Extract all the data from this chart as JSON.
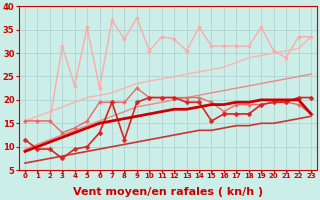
{
  "xlabel": "Vent moyen/en rafales ( kn/h )",
  "bg_color": "#cceee8",
  "grid_color": "#aacccc",
  "x": [
    0,
    1,
    2,
    3,
    4,
    5,
    6,
    7,
    8,
    9,
    10,
    11,
    12,
    13,
    14,
    15,
    16,
    17,
    18,
    19,
    20,
    21,
    22,
    23
  ],
  "ylim": [
    5,
    40
  ],
  "xlim": [
    -0.5,
    23.5
  ],
  "yticks": [
    5,
    10,
    15,
    20,
    25,
    30,
    35,
    40
  ],
  "lines": [
    {
      "y": [
        15.5,
        16.5,
        17.5,
        18.5,
        19.5,
        20.5,
        21.0,
        21.5,
        22.5,
        23.5,
        24.0,
        24.5,
        25.0,
        25.5,
        26.0,
        26.5,
        27.0,
        28.0,
        29.0,
        29.5,
        30.0,
        30.5,
        31.0,
        33.5
      ],
      "color": "#ffb0b0",
      "lw": 1.0,
      "marker": null,
      "ms": 0,
      "zorder": 2
    },
    {
      "y": [
        15.5,
        15.5,
        15.5,
        31.5,
        23.0,
        35.5,
        22.5,
        37.0,
        33.0,
        37.5,
        30.5,
        33.5,
        33.0,
        30.5,
        35.5,
        31.5,
        31.5,
        31.5,
        31.5,
        35.5,
        30.5,
        29.0,
        33.5,
        33.5
      ],
      "color": "#ffaaaa",
      "lw": 1.0,
      "marker": "D",
      "ms": 2.0,
      "zorder": 3
    },
    {
      "y": [
        9.5,
        10.5,
        11.5,
        12.5,
        13.5,
        14.5,
        15.5,
        16.5,
        17.5,
        18.5,
        19.0,
        19.5,
        20.0,
        20.5,
        21.0,
        21.5,
        22.0,
        22.5,
        23.0,
        23.5,
        24.0,
        24.5,
        25.0,
        25.5
      ],
      "color": "#ee8888",
      "lw": 1.0,
      "marker": null,
      "ms": 0,
      "zorder": 4
    },
    {
      "y": [
        15.5,
        15.5,
        15.5,
        13.0,
        14.0,
        15.5,
        19.5,
        19.5,
        19.5,
        22.5,
        20.5,
        20.5,
        20.5,
        20.5,
        20.5,
        19.5,
        17.5,
        19.0,
        19.0,
        19.0,
        19.5,
        19.5,
        19.0,
        17.0
      ],
      "color": "#ee6666",
      "lw": 1.0,
      "marker": "D",
      "ms": 2.0,
      "zorder": 5
    },
    {
      "y": [
        11.5,
        9.5,
        9.5,
        7.5,
        9.5,
        10.0,
        13.0,
        19.5,
        11.5,
        19.5,
        20.5,
        20.5,
        20.5,
        19.5,
        19.5,
        15.5,
        17.0,
        17.0,
        17.0,
        19.0,
        19.5,
        19.5,
        20.5,
        20.5
      ],
      "color": "#dd2222",
      "lw": 1.2,
      "marker": "D",
      "ms": 2.5,
      "zorder": 6
    },
    {
      "y": [
        9.0,
        10.0,
        11.0,
        12.0,
        13.0,
        14.0,
        15.0,
        15.5,
        16.0,
        16.5,
        17.0,
        17.5,
        18.0,
        18.0,
        18.5,
        19.0,
        19.0,
        19.5,
        19.5,
        20.0,
        20.0,
        20.0,
        20.0,
        17.0
      ],
      "color": "#cc0000",
      "lw": 2.0,
      "marker": null,
      "ms": 0,
      "zorder": 7
    },
    {
      "y": [
        6.5,
        7.0,
        7.5,
        8.0,
        8.5,
        9.0,
        9.5,
        10.0,
        10.5,
        11.0,
        11.5,
        12.0,
        12.5,
        13.0,
        13.5,
        13.5,
        14.0,
        14.5,
        14.5,
        15.0,
        15.0,
        15.5,
        16.0,
        16.5
      ],
      "color": "#cc3333",
      "lw": 1.2,
      "marker": null,
      "ms": 0,
      "zorder": 1
    }
  ],
  "xlabel_color": "#cc0000",
  "xlabel_fontsize": 8,
  "tick_labelsize": 6,
  "ytick_labelsize": 6,
  "arrow_color": "#cc2222"
}
